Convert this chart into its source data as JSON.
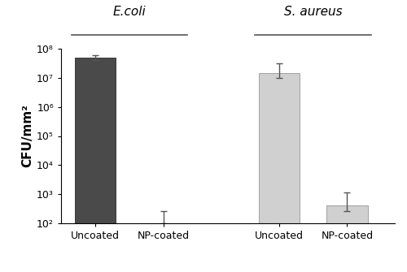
{
  "groups": [
    "E.coli",
    "S. aureus"
  ],
  "bar_labels": [
    "Uncoated",
    "NP-coated",
    "Uncoated",
    "NP-coated"
  ],
  "values": [
    50000000.0,
    100.0,
    15000000.0,
    400.0
  ],
  "errors_upper": [
    12000000.0,
    150.0,
    18000000.0,
    700.0
  ],
  "errors_lower": [
    8000000.0,
    0,
    5000000.0,
    150.0
  ],
  "bar_colors": [
    "#4a4a4a",
    "#d3d3d3",
    "#d3d3d3",
    "#d3d3d3"
  ],
  "bar_edge_colors": [
    "#3a3a3a",
    "#b0b0b0",
    "#b0b0b0",
    "#b0b0b0"
  ],
  "ecoli_color": "#4a4a4a",
  "saur_color": "#d0d0d0",
  "ylabel": "CFU/mm²",
  "ylim_log": [
    100,
    100000000.0
  ],
  "yticks": [
    100,
    1000,
    10000,
    100000,
    1000000,
    10000000,
    100000000
  ],
  "ytick_labels": [
    "10²",
    "10³",
    "10⁴",
    "10⁵",
    "10⁶",
    "10⁷",
    "10⁸"
  ],
  "group_label_fontsize": 11,
  "ylabel_fontsize": 11,
  "tick_fontsize": 9,
  "bar_width": 0.6,
  "positions": [
    0.5,
    1.5,
    3.2,
    4.2
  ],
  "ecolor": "#555555",
  "capsize": 3,
  "ecoli_label": "E.coli",
  "saur_label": "S. aureus"
}
